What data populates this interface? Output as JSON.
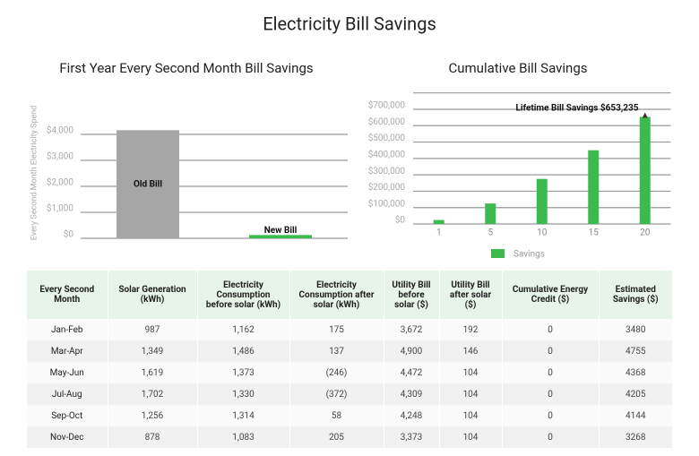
{
  "title": "Electricity Bill Savings",
  "chart_data": [
    {
      "type": "bar",
      "title": "First Year Every Second Month Bill Savings",
      "y_label": "Every Second Month Electricity Spend",
      "categories": [
        "Old Bill",
        "New Bill"
      ],
      "values": [
        4162,
        126
      ],
      "colors": [
        "#a6a6a6",
        "#3dba4e"
      ],
      "ylim": [
        0,
        4500
      ],
      "yticks": [
        {
          "value": 0,
          "label": "$0"
        },
        {
          "value": 1000,
          "label": "$1,000"
        },
        {
          "value": 2000,
          "label": "$2,000"
        },
        {
          "value": 3000,
          "label": "$3,000"
        },
        {
          "value": 4000,
          "label": "$4,000"
        }
      ],
      "grid": true
    },
    {
      "type": "bar",
      "title": "Cumulative Bill Savings",
      "categories": [
        "1",
        "5",
        "10",
        "15",
        "20"
      ],
      "series": [
        {
          "name": "Savings",
          "color": "#3dba4e",
          "values": [
            24220,
            125000,
            275000,
            450000,
            653235
          ]
        }
      ],
      "annotation": "Lifetime Bill Savings $653,235",
      "ylim": [
        0,
        800000
      ],
      "yticks": [
        {
          "value": 0,
          "label": "$0"
        },
        {
          "value": 100000,
          "label": "$100,000"
        },
        {
          "value": 200000,
          "label": "$200,000"
        },
        {
          "value": 300000,
          "label": "$300,000"
        },
        {
          "value": 400000,
          "label": "$400,000"
        },
        {
          "value": 500000,
          "label": "$500,000"
        },
        {
          "value": 600000,
          "label": "$600,000"
        },
        {
          "value": 700000,
          "label": "$700,000"
        }
      ],
      "grid": true,
      "legend": "bottom"
    }
  ],
  "table": {
    "header": [
      "Every Second Month",
      "Solar Generation (kWh)",
      "Electricity Consumption before solar (kWh)",
      "Electricity Consumption after solar (kWh)",
      "Utility Bill before solar ($)",
      "Utility Bill after solar ($)",
      "Cumulative Energy Credit ($)",
      "Estimated Savings ($)"
    ],
    "rows": [
      [
        "Jan-Feb",
        "987",
        "1,162",
        "175",
        "3,672",
        "192",
        "0",
        "3480"
      ],
      [
        "Mar-Apr",
        "1,349",
        "1,486",
        "137",
        "4,900",
        "146",
        "0",
        "4755"
      ],
      [
        "May-Jun",
        "1,619",
        "1,373",
        "(246)",
        "4,472",
        "104",
        "0",
        "4368"
      ],
      [
        "Jul-Aug",
        "1,702",
        "1,330",
        "(372)",
        "4,309",
        "104",
        "0",
        "4205"
      ],
      [
        "Sep-Oct",
        "1,256",
        "1,314",
        "58",
        "4,248",
        "104",
        "0",
        "4144"
      ],
      [
        "Nov-Dec",
        "878",
        "1,083",
        "205",
        "3,373",
        "104",
        "0",
        "3268"
      ]
    ]
  }
}
